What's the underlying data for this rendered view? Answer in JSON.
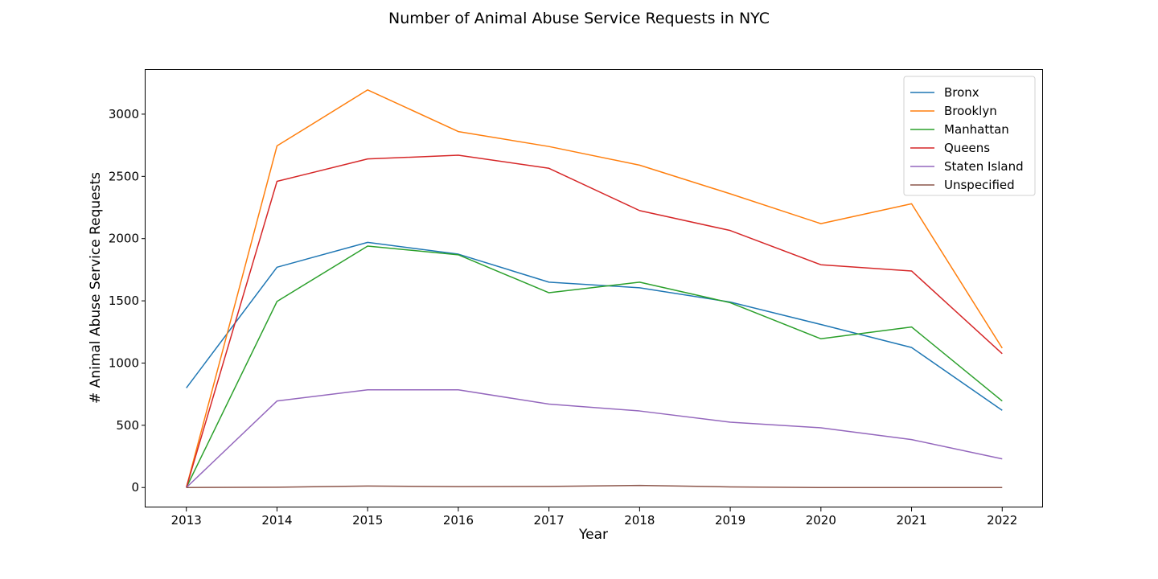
{
  "chart_data": {
    "type": "line",
    "title": "Number of Animal Abuse Service Requests in NYC",
    "xlabel": "Year",
    "ylabel": "# Animal Abuse Service Requests",
    "x": [
      2013,
      2014,
      2015,
      2016,
      2017,
      2018,
      2019,
      2020,
      2021,
      2022
    ],
    "xlim": [
      2012.55,
      2022.45
    ],
    "ylim": [
      -160,
      3355
    ],
    "yticks": [
      0,
      500,
      1000,
      1500,
      2000,
      2500,
      3000
    ],
    "grid": false,
    "legend_position": "top-right",
    "series": [
      {
        "name": "Bronx",
        "color": "#1f77b4",
        "values": [
          800,
          1770,
          1970,
          1875,
          1650,
          1605,
          1490,
          1310,
          1125,
          620
        ]
      },
      {
        "name": "Brooklyn",
        "color": "#ff7f0e",
        "values": [
          0,
          2745,
          3195,
          2860,
          2740,
          2590,
          2360,
          2120,
          2280,
          1120
        ]
      },
      {
        "name": "Manhattan",
        "color": "#2ca02c",
        "values": [
          0,
          1495,
          1940,
          1870,
          1565,
          1650,
          1485,
          1195,
          1290,
          695
        ]
      },
      {
        "name": "Queens",
        "color": "#d62728",
        "values": [
          0,
          2460,
          2640,
          2670,
          2565,
          2225,
          2065,
          1790,
          1740,
          1075
        ]
      },
      {
        "name": "Staten Island",
        "color": "#9467bd",
        "values": [
          0,
          695,
          785,
          785,
          670,
          615,
          525,
          480,
          385,
          230
        ]
      },
      {
        "name": "Unspecified",
        "color": "#8c564b",
        "values": [
          0,
          2,
          12,
          7,
          9,
          17,
          5,
          0,
          0,
          0
        ]
      }
    ]
  }
}
